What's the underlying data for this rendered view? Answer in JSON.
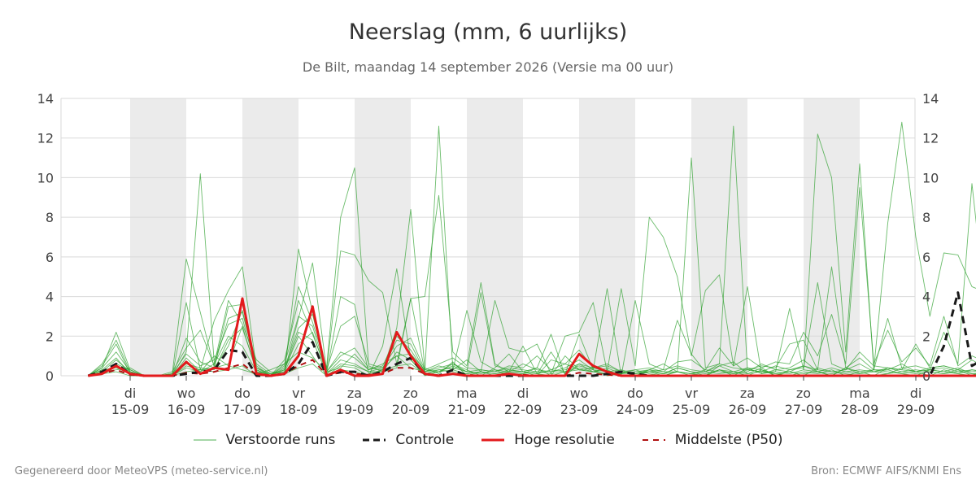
{
  "footer": {
    "left": "Gegenereerd door MeteoVPS (meteo-service.nl)",
    "right": "Bron: ECMWF AIFS/KNMI Ens"
  },
  "chart_data": {
    "type": "line",
    "title": "Neerslag (mm, 6 uurlijks)",
    "subtitle": "De Bilt, maandag 14 september 2026 (Versie ma 00 uur)",
    "ylim": [
      0,
      14
    ],
    "yticks": [
      0,
      2,
      4,
      6,
      8,
      10,
      12,
      14
    ],
    "x_unit": "days since 14-09 00:00",
    "xlim": [
      -0.75,
      14.0
    ],
    "x_step": 0.25,
    "x_start": -0.75,
    "day_ticks": [
      {
        "x": 0,
        "weekday": "di",
        "date": "15-09"
      },
      {
        "x": 1,
        "weekday": "wo",
        "date": "16-09"
      },
      {
        "x": 2,
        "weekday": "do",
        "date": "17-09"
      },
      {
        "x": 3,
        "weekday": "vr",
        "date": "18-09"
      },
      {
        "x": 4,
        "weekday": "za",
        "date": "19-09"
      },
      {
        "x": 5,
        "weekday": "zo",
        "date": "20-09"
      },
      {
        "x": 6,
        "weekday": "ma",
        "date": "21-09"
      },
      {
        "x": 7,
        "weekday": "di",
        "date": "22-09"
      },
      {
        "x": 8,
        "weekday": "wo",
        "date": "23-09"
      },
      {
        "x": 9,
        "weekday": "do",
        "date": "24-09"
      },
      {
        "x": 10,
        "weekday": "vr",
        "date": "25-09"
      },
      {
        "x": 11,
        "weekday": "za",
        "date": "26-09"
      },
      {
        "x": 12,
        "weekday": "zo",
        "date": "27-09"
      },
      {
        "x": 13,
        "weekday": "ma",
        "date": "28-09"
      },
      {
        "x": 14,
        "weekday": "di",
        "date": "29-09"
      }
    ],
    "shaded_bands": [
      [
        0,
        1
      ],
      [
        2,
        3
      ],
      [
        4,
        5
      ],
      [
        6,
        7
      ],
      [
        8,
        9
      ],
      [
        10,
        11
      ],
      [
        12,
        13
      ]
    ],
    "colors": {
      "ensemble": "#2ca02c",
      "control": "#1a1a1a",
      "high_res": "#e31a1c",
      "median": "#b01010",
      "band": "#ebebeb",
      "grid": "#d9d9d9"
    },
    "legend": {
      "ensemble": "Verstoorde runs",
      "control": "Controle",
      "high_res": "Hoge resolutie",
      "median": "Middelste (P50)"
    },
    "series": [
      {
        "name": "Controle",
        "role": "control",
        "values": [
          0,
          0.2,
          0.6,
          0.1,
          0,
          0,
          0,
          0.1,
          0.2,
          0.3,
          1.3,
          1.2,
          0,
          0,
          0.1,
          0.6,
          1.7,
          0,
          0.2,
          0.2,
          0,
          0.2,
          0.6,
          0.9,
          0.1,
          0,
          0.3,
          0,
          0,
          0,
          0,
          0,
          0,
          0,
          0,
          0,
          0,
          0.1,
          0.2,
          0.1,
          0,
          0,
          0,
          0,
          0,
          0,
          0,
          0,
          0,
          0,
          0,
          0,
          0,
          0,
          0,
          0,
          0,
          0,
          0,
          0,
          0,
          1.5,
          4.2,
          0.5,
          0.9,
          4.5,
          0.3,
          6.2,
          0,
          1.4,
          0
        ]
      },
      {
        "name": "Hoge resolutie",
        "role": "high_res",
        "values": [
          0,
          0.1,
          0.5,
          0.1,
          0,
          0,
          0,
          0.7,
          0.1,
          0.4,
          0.3,
          3.9,
          0.1,
          0,
          0.1,
          1.0,
          3.5,
          0,
          0.3,
          0,
          0,
          0.1,
          2.2,
          1.0,
          0.1,
          0,
          0.1,
          0,
          0,
          0,
          0.1,
          0,
          0,
          0,
          0,
          1.1,
          0.5,
          0.2,
          0,
          0,
          0,
          0,
          0,
          0,
          0,
          0,
          0,
          0,
          0,
          0,
          0,
          0,
          0,
          0,
          0,
          0,
          0,
          0,
          0,
          0,
          0,
          0,
          0,
          0,
          0,
          0,
          0,
          0,
          0,
          0
        ]
      },
      {
        "name": "Middelste (P50)",
        "role": "median",
        "values": [
          0,
          0.1,
          0.3,
          0.05,
          0,
          0,
          0,
          0.15,
          0.1,
          0.2,
          0.4,
          0.6,
          0.05,
          0,
          0.1,
          0.5,
          0.8,
          0.05,
          0.15,
          0.1,
          0.05,
          0.1,
          0.4,
          0.4,
          0.1,
          0,
          0.1,
          0.05,
          0,
          0,
          0.05,
          0.05,
          0,
          0,
          0,
          0.15,
          0.1,
          0.05,
          0,
          0,
          0,
          0,
          0,
          0,
          0,
          0,
          0,
          0,
          0,
          0,
          0,
          0,
          0,
          0,
          0,
          0,
          0,
          0,
          0,
          0,
          0,
          0,
          0,
          0,
          0,
          0,
          0,
          0,
          0,
          0
        ]
      },
      {
        "role": "ensemble",
        "values": [
          0,
          0.4,
          2.2,
          0.3,
          0,
          0,
          0.1,
          5.9,
          3.2,
          0.4,
          0.6,
          2.5,
          0.2,
          0,
          0.3,
          2.0,
          1.0,
          0,
          0.5,
          0.4,
          0,
          1.5,
          5.4,
          0.8,
          0,
          0.2,
          0.6,
          0.3,
          0,
          0.4,
          1.1,
          0.2,
          0,
          0.8,
          0.6,
          0.3,
          0.2,
          0.3,
          0,
          0,
          0.2,
          0.1,
          0.4,
          0.2,
          0,
          0.3,
          0.1,
          0.2,
          0.6,
          0.3,
          0.4,
          0.8,
          0.2,
          0,
          0.4,
          0.2,
          0.3,
          0.3,
          0.6,
          0.2,
          0.4,
          0.5,
          0.3,
          0.2,
          0.3,
          0.4,
          0.2,
          0.1,
          0.3,
          0.2,
          0.1
        ]
      },
      {
        "role": "ensemble",
        "values": [
          0,
          0.2,
          0.8,
          0.2,
          0,
          0,
          0,
          1.2,
          10.2,
          0.6,
          3.8,
          2.6,
          0.8,
          0.2,
          0.1,
          6.4,
          3.2,
          0.1,
          4.0,
          3.6,
          0.1,
          0.3,
          2.4,
          8.4,
          0.4,
          0.1,
          0.7,
          0,
          0.2,
          0,
          0.2,
          1.5,
          0.1,
          0,
          0.2,
          0.5,
          0.3,
          0,
          0.1,
          0.2,
          0.2,
          0,
          0.2,
          0,
          0,
          0.3,
          0,
          0.4,
          0.3,
          0,
          0.2,
          0,
          0.4,
          0.2,
          0.1,
          0,
          0,
          0.4,
          0.2,
          0.3,
          0.2,
          0.1,
          0.3,
          0,
          0.4,
          0.3,
          0,
          0.1,
          0.2,
          0,
          0.3
        ]
      },
      {
        "role": "ensemble",
        "values": [
          0,
          0.5,
          1.6,
          0.1,
          0,
          0,
          0,
          3.7,
          0.3,
          2.8,
          4.3,
          5.5,
          0.4,
          0,
          0.5,
          4.5,
          2.7,
          0.4,
          8.0,
          10.5,
          0.5,
          0.2,
          0.4,
          3.9,
          0.2,
          12.6,
          0.3,
          3.3,
          0.7,
          0.3,
          0,
          0.1,
          0.4,
          2.1,
          0,
          0.6,
          0.2,
          0.4,
          0.1,
          0.3,
          0.1,
          0,
          0.2,
          0.1,
          0,
          0.5,
          0.2,
          0,
          0.3,
          0.1,
          0,
          0.2,
          0.1,
          0.3,
          0,
          0.2,
          0,
          0.1,
          0.4,
          0.2,
          0,
          0.3,
          0.1,
          0,
          0.2,
          0.1,
          0.3,
          0,
          0.2,
          0.1,
          0.2
        ]
      },
      {
        "role": "ensemble",
        "values": [
          0,
          0.3,
          0.4,
          0.1,
          0,
          0,
          0,
          1.9,
          0.7,
          0.4,
          3.5,
          3.6,
          0.6,
          0.1,
          0.2,
          2.9,
          5.7,
          0.3,
          6.3,
          6.1,
          4.8,
          4.2,
          0.6,
          3.9,
          4.0,
          9.1,
          1.2,
          0.5,
          4.7,
          0.6,
          0.2,
          0.2,
          0.1,
          1.2,
          0.1,
          2.1,
          0.3,
          4.4,
          0,
          3.8,
          0.6,
          0.3,
          2.8,
          1.1,
          0.2,
          0.5,
          0.7,
          0.1,
          0.4,
          0,
          0.3,
          0.5,
          0.2,
          0,
          0.4,
          0.1,
          0.3,
          0.2,
          0.1,
          0,
          0.3,
          0.2,
          0.4,
          0.1,
          0,
          0.2,
          0.3,
          0.1,
          0.2,
          0,
          0.1
        ]
      },
      {
        "role": "ensemble",
        "values": [
          0,
          0.2,
          0.3,
          0.4,
          0,
          0,
          0,
          0.4,
          0.2,
          1.0,
          0.5,
          0.3,
          0.1,
          0.3,
          0.6,
          1.2,
          0.9,
          0.2,
          0.4,
          1.1,
          0.3,
          0.6,
          1.0,
          0.4,
          0.2,
          0.5,
          0.3,
          0.8,
          0.2,
          3.8,
          1.4,
          1.2,
          1.6,
          0.1,
          2.0,
          2.2,
          3.7,
          0.2,
          4.4,
          0.5,
          8.0,
          7.0,
          5.0,
          1.0,
          4.3,
          5.1,
          0.5,
          4.5,
          0.1,
          0.2,
          3.4,
          0.3,
          12.2,
          10.0,
          1.2,
          10.7,
          0.3,
          7.7,
          12.8,
          7.0,
          3.0,
          6.2,
          6.1,
          4.5,
          4.2,
          3.1,
          4.7,
          0.4,
          4.9,
          1.2,
          10.3
        ]
      },
      {
        "role": "ensemble",
        "values": [
          0,
          0.1,
          0.2,
          0,
          0,
          0,
          0,
          0.2,
          0.3,
          0.2,
          0.3,
          0.5,
          0,
          0,
          0.1,
          0.4,
          0.6,
          0,
          0.3,
          0.2,
          0,
          0.3,
          0.5,
          0.6,
          0.1,
          0.2,
          0.5,
          0.2,
          4.2,
          0.5,
          0.3,
          0.2,
          0.4,
          0,
          1.0,
          0.3,
          0.4,
          0.5,
          0.2,
          0,
          0.3,
          0.6,
          0.2,
          11.0,
          0.4,
          0.6,
          12.6,
          0.3,
          0.5,
          0.4,
          1.6,
          1.8,
          0.3,
          5.5,
          0.4,
          0.9,
          0.3,
          2.9,
          0.4,
          0.5,
          0.3,
          2.2,
          0.6,
          9.7,
          3.2,
          0.4,
          0.3,
          3.2,
          2.9,
          0.2,
          8.2
        ]
      },
      {
        "role": "ensemble",
        "values": [
          0,
          0.6,
          1.8,
          0.2,
          0,
          0,
          0.2,
          1.4,
          2.3,
          0.5,
          2.9,
          3.2,
          0.5,
          0,
          0.8,
          3.8,
          2.1,
          0.3,
          2.5,
          3.0,
          0.6,
          0.4,
          1.5,
          1.9,
          0.3,
          0.6,
          0.9,
          0.4,
          0.3,
          0.2,
          0.5,
          0.4,
          1.0,
          0.3,
          0.6,
          1.3,
          0.4,
          0.6,
          0.2,
          0.3,
          0.4,
          0.2,
          0.7,
          0.8,
          0.3,
          1.4,
          0.5,
          0.9,
          0.4,
          0.7,
          0.6,
          2.2,
          1.0,
          3.1,
          0.6,
          9.5,
          0.6,
          2.3,
          0.7,
          1.4,
          0.5,
          3.0,
          0.5,
          1.0,
          0.7,
          0.5,
          0.6,
          0.4,
          1.6,
          0.3,
          0.5
        ]
      },
      {
        "role": "ensemble",
        "values": [
          0,
          0.3,
          0.9,
          0.1,
          0,
          0,
          0.1,
          0.6,
          0.4,
          0.3,
          1.8,
          2.4,
          0.3,
          0,
          0.4,
          2.4,
          3.1,
          0.2,
          1.2,
          0.9,
          0.3,
          0.5,
          2.0,
          1.3,
          0.2,
          0.4,
          0.6,
          0.2,
          0.1,
          0.3,
          0.2,
          0.6,
          0.3,
          0.2,
          0.4,
          0.8,
          0.3,
          0.2,
          0.3,
          0.1,
          0.2,
          0.3,
          0.5,
          0.3,
          0.2,
          0.6,
          0.4,
          0.3,
          0.2,
          0.5,
          0.3,
          0.4,
          4.7,
          0.6,
          0.3,
          1.2,
          0.5,
          0.4,
          0.3,
          1.6,
          0.4,
          0.5,
          0.3,
          0.8,
          0.4,
          0.3,
          0.5,
          0.2,
          0.6,
          0.4,
          0.3
        ]
      },
      {
        "role": "ensemble",
        "values": [
          0,
          0.1,
          0.6,
          0.3,
          0,
          0,
          0,
          0.9,
          0.2,
          0.6,
          2.0,
          1.5,
          0.2,
          0.1,
          0.2,
          1.6,
          2.2,
          0.1,
          0.6,
          0.5,
          0.2,
          0.2,
          1.2,
          0.8,
          0.1,
          0.3,
          0.2,
          0.1,
          0.2,
          0.1,
          0.3,
          0.2,
          0.1,
          0.3,
          0.2,
          0.4,
          0.2,
          0.1,
          0.2,
          0.1,
          0.3,
          0.2,
          0.2,
          0.1,
          0.3,
          0.2,
          0.1,
          0.3,
          0.2,
          0.2,
          0.1,
          0.3,
          0.2,
          0.4,
          0.2,
          0.3,
          0.2,
          0.3,
          0.1,
          0.2,
          0.3,
          0.2,
          0.1,
          0.3,
          0.2,
          0.1,
          0.2,
          0.3,
          0.1,
          0.2,
          0.3
        ]
      },
      {
        "role": "ensemble",
        "values": [
          0,
          0.4,
          1.2,
          0.2,
          0,
          0,
          0.1,
          1.1,
          0.5,
          0.8,
          2.6,
          2.9,
          0.3,
          0,
          0.6,
          3.0,
          2.5,
          0.2,
          1.0,
          1.4,
          0.4,
          0.3,
          1.8,
          1.6,
          0.2,
          0.3,
          0.4,
          0.2,
          0.3,
          0.2,
          0.4,
          0.3,
          0.2,
          0.2,
          0.3,
          0.6,
          0.4,
          0.2,
          0.1,
          0.2,
          0.3,
          0.1,
          0.4,
          0.2,
          0.1,
          0.3,
          0.2,
          0.4,
          0.1,
          0.3,
          0.2,
          0.5,
          0.3,
          0.2,
          0.3,
          0.6,
          0.2,
          0.4,
          0.3,
          0.2,
          0.3,
          0.4,
          0.2,
          0.3,
          0.2,
          0.4,
          0.3,
          0.2,
          0.3,
          0.2,
          0.4
        ]
      },
      {
        "role": "ensemble",
        "values": [
          0,
          0.2,
          0.5,
          0.1,
          0,
          0,
          0,
          0.5,
          0.3,
          0.4,
          1.5,
          3.3,
          0.4,
          0.1,
          0.3,
          2.2,
          1.8,
          0.1,
          0.8,
          0.6,
          0.2,
          0.4,
          1.0,
          1.1,
          0.3,
          0.2,
          0.3,
          0.1,
          0.2,
          0.1,
          0.2,
          0.1,
          0.2,
          0.1,
          0.2,
          0.3,
          0.2,
          0.1,
          0.2,
          0.1,
          0.2,
          0.1,
          0.2,
          0.1,
          0.2,
          0.1,
          0.2,
          0.1,
          0.2,
          0.1,
          0.2,
          0.1,
          0.2,
          0.1,
          0.2,
          0.1,
          0.2,
          0.1,
          0.2,
          0.1,
          0.2,
          0.1,
          0.2,
          0.1,
          0.2,
          0.1,
          0.2,
          0.1,
          0.2,
          0.1,
          0.2
        ]
      }
    ]
  }
}
